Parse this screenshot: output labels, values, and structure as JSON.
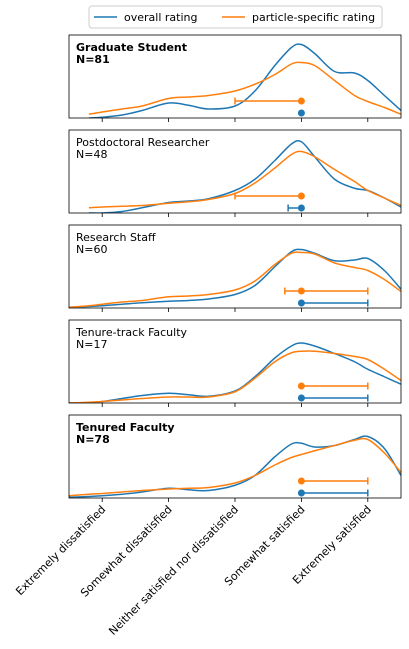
{
  "chart_data": {
    "type": "line",
    "categories": [
      "Extremely dissatisfied",
      "Somewhat dissatisfied",
      "Neither satisfied nor dissatisfied",
      "Somewhat satisfied",
      "Extremely satisfied"
    ],
    "xlim": [
      0.5,
      5.5
    ],
    "legend": {
      "placement": "top-center"
    },
    "series": [
      {
        "name": "overall rating",
        "color": "#1f77b4"
      },
      {
        "name": "particle-specific rating",
        "color": "#ff7f0e"
      }
    ],
    "panels": [
      {
        "title": "Graduate Student",
        "n_label": "N=81",
        "bold": true,
        "density": {
          "x": [
            0.8,
            1.0,
            1.3,
            1.6,
            2.0,
            2.3,
            2.6,
            3.0,
            3.3,
            3.6,
            3.85,
            4.0,
            4.2,
            4.5,
            4.8,
            5.0,
            5.25,
            5.5
          ],
          "overall": [
            0.0,
            0.01,
            0.04,
            0.1,
            0.2,
            0.17,
            0.12,
            0.16,
            0.36,
            0.7,
            0.94,
            0.98,
            0.86,
            0.62,
            0.6,
            0.5,
            0.3,
            0.1
          ],
          "particle": [
            0.05,
            0.08,
            0.12,
            0.16,
            0.26,
            0.28,
            0.3,
            0.36,
            0.45,
            0.58,
            0.72,
            0.74,
            0.7,
            0.5,
            0.3,
            0.22,
            0.14,
            0.05
          ]
        },
        "overall_point": {
          "median": 4,
          "lo": 4,
          "hi": 4
        },
        "particle_point": {
          "median": 4,
          "lo": 3,
          "hi": 4
        }
      },
      {
        "title": "Postdoctoral Researcher",
        "n_label": "N=48",
        "bold": false,
        "density": {
          "x": [
            0.8,
            1.0,
            1.3,
            1.6,
            2.0,
            2.3,
            2.6,
            3.0,
            3.3,
            3.6,
            3.85,
            4.0,
            4.2,
            4.5,
            4.8,
            5.0,
            5.25,
            5.5
          ],
          "overall": [
            0.0,
            0.0,
            0.02,
            0.07,
            0.14,
            0.16,
            0.19,
            0.3,
            0.45,
            0.7,
            0.92,
            0.95,
            0.75,
            0.45,
            0.33,
            0.3,
            0.2,
            0.08
          ],
          "particle": [
            0.07,
            0.08,
            0.09,
            0.1,
            0.13,
            0.15,
            0.18,
            0.26,
            0.4,
            0.6,
            0.78,
            0.82,
            0.75,
            0.58,
            0.42,
            0.3,
            0.2,
            0.1
          ]
        },
        "overall_point": {
          "median": 4,
          "lo": 3.8,
          "hi": 4
        },
        "particle_point": {
          "median": 4,
          "lo": 3,
          "hi": 4
        }
      },
      {
        "title": "Research Staff",
        "n_label": "N=60",
        "bold": false,
        "density": {
          "x": [
            0.5,
            0.8,
            1.0,
            1.3,
            1.6,
            2.0,
            2.3,
            2.6,
            3.0,
            3.3,
            3.6,
            3.85,
            4.0,
            4.2,
            4.5,
            4.8,
            5.0,
            5.25,
            5.5
          ],
          "overall": [
            0.01,
            0.02,
            0.03,
            0.05,
            0.07,
            0.09,
            0.1,
            0.12,
            0.18,
            0.3,
            0.55,
            0.75,
            0.78,
            0.73,
            0.63,
            0.64,
            0.66,
            0.5,
            0.25
          ],
          "particle": [
            0.01,
            0.03,
            0.05,
            0.08,
            0.1,
            0.15,
            0.16,
            0.18,
            0.24,
            0.36,
            0.58,
            0.73,
            0.74,
            0.72,
            0.6,
            0.54,
            0.5,
            0.38,
            0.22
          ]
        },
        "overall_point": {
          "median": 4,
          "lo": 4,
          "hi": 5
        },
        "particle_point": {
          "median": 4,
          "lo": 3.75,
          "hi": 5
        }
      },
      {
        "title": "Tenure-track Faculty",
        "n_label": "N=17",
        "bold": false,
        "density": {
          "x": [
            0.5,
            0.8,
            1.0,
            1.3,
            1.6,
            2.0,
            2.3,
            2.6,
            3.0,
            3.3,
            3.6,
            3.85,
            4.0,
            4.2,
            4.5,
            4.8,
            5.0,
            5.25,
            5.5
          ],
          "overall": [
            0.0,
            0.0,
            0.02,
            0.06,
            0.1,
            0.13,
            0.11,
            0.09,
            0.16,
            0.35,
            0.6,
            0.76,
            0.8,
            0.76,
            0.66,
            0.55,
            0.45,
            0.35,
            0.25
          ],
          "particle": [
            0.0,
            0.01,
            0.02,
            0.04,
            0.06,
            0.08,
            0.08,
            0.08,
            0.15,
            0.33,
            0.55,
            0.67,
            0.69,
            0.69,
            0.66,
            0.62,
            0.58,
            0.45,
            0.3
          ]
        },
        "overall_point": {
          "median": 4,
          "lo": 4,
          "hi": 5
        },
        "particle_point": {
          "median": 4,
          "lo": 4,
          "hi": 5
        }
      },
      {
        "title": "Tenured Faculty",
        "n_label": "N=78",
        "bold": true,
        "density": {
          "x": [
            0.5,
            0.8,
            1.0,
            1.3,
            1.6,
            2.0,
            2.3,
            2.6,
            3.0,
            3.3,
            3.6,
            3.85,
            4.0,
            4.2,
            4.5,
            4.8,
            5.0,
            5.25,
            5.5
          ],
          "overall": [
            0.01,
            0.02,
            0.03,
            0.05,
            0.08,
            0.13,
            0.11,
            0.1,
            0.17,
            0.3,
            0.55,
            0.72,
            0.73,
            0.68,
            0.7,
            0.78,
            0.82,
            0.66,
            0.3
          ],
          "particle": [
            0.03,
            0.05,
            0.06,
            0.08,
            0.1,
            0.12,
            0.13,
            0.14,
            0.2,
            0.3,
            0.44,
            0.54,
            0.58,
            0.63,
            0.7,
            0.77,
            0.78,
            0.6,
            0.34
          ]
        },
        "overall_point": {
          "median": 4,
          "lo": 4,
          "hi": 5
        },
        "particle_point": {
          "median": 4,
          "lo": 4,
          "hi": 5
        }
      }
    ]
  }
}
